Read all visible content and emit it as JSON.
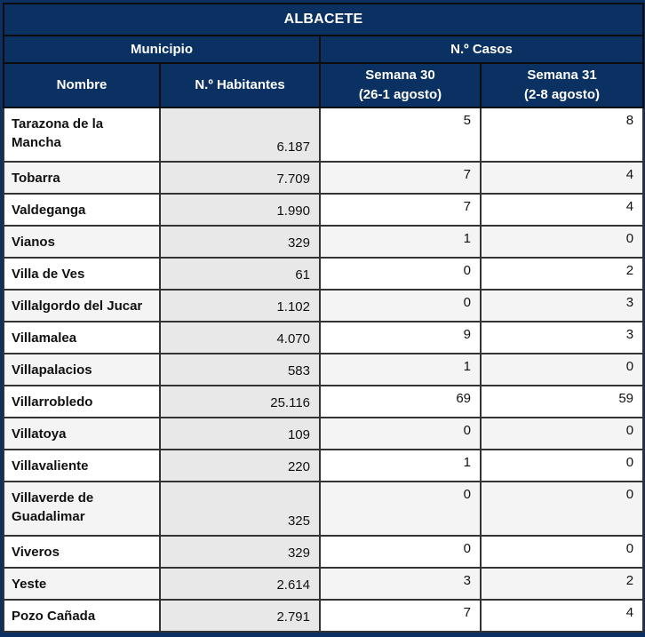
{
  "title": "ALBACETE",
  "group_headers": {
    "municipio": "Municipio",
    "casos": "N.º Casos"
  },
  "column_headers": {
    "nombre": "Nombre",
    "habitantes": "N.º Habitantes",
    "semana30_label": "Semana 30",
    "semana30_sublabel": "(26-1 agosto)",
    "semana31_label": "Semana 31",
    "semana31_sublabel": "(2-8 agosto)"
  },
  "rows": [
    {
      "nombre": "Tarazona de la Mancha",
      "habitantes": "6.187",
      "semana30": "5",
      "semana31": "8"
    },
    {
      "nombre": "Tobarra",
      "habitantes": "7.709",
      "semana30": "7",
      "semana31": "4"
    },
    {
      "nombre": "Valdeganga",
      "habitantes": "1.990",
      "semana30": "7",
      "semana31": "4"
    },
    {
      "nombre": "Vianos",
      "habitantes": "329",
      "semana30": "1",
      "semana31": "0"
    },
    {
      "nombre": "Villa de Ves",
      "habitantes": "61",
      "semana30": "0",
      "semana31": "2"
    },
    {
      "nombre": "Villalgordo del Jucar",
      "habitantes": "1.102",
      "semana30": "0",
      "semana31": "3"
    },
    {
      "nombre": "Villamalea",
      "habitantes": "4.070",
      "semana30": "9",
      "semana31": "3"
    },
    {
      "nombre": "Villapalacios",
      "habitantes": "583",
      "semana30": "1",
      "semana31": "0"
    },
    {
      "nombre": "Villarrobledo",
      "habitantes": "25.116",
      "semana30": "69",
      "semana31": "59"
    },
    {
      "nombre": "Villatoya",
      "habitantes": "109",
      "semana30": "0",
      "semana31": "0"
    },
    {
      "nombre": "Villavaliente",
      "habitantes": "220",
      "semana30": "1",
      "semana31": "0"
    },
    {
      "nombre": "Villaverde de Guadalimar",
      "habitantes": "325",
      "semana30": "0",
      "semana31": "0"
    },
    {
      "nombre": "Viveros",
      "habitantes": "329",
      "semana30": "0",
      "semana31": "0"
    },
    {
      "nombre": "Yeste",
      "habitantes": "2.614",
      "semana30": "3",
      "semana31": "2"
    },
    {
      "nombre": "Pozo Cañada",
      "habitantes": "2.791",
      "semana30": "7",
      "semana31": "4"
    }
  ],
  "colors": {
    "navy": "#0a3161",
    "grid": "#333333",
    "header_text": "#ffffff",
    "row_alt": "#f4f4f4",
    "hab_bg": "#e8e8e8",
    "semana_divider": "#8796ad"
  }
}
